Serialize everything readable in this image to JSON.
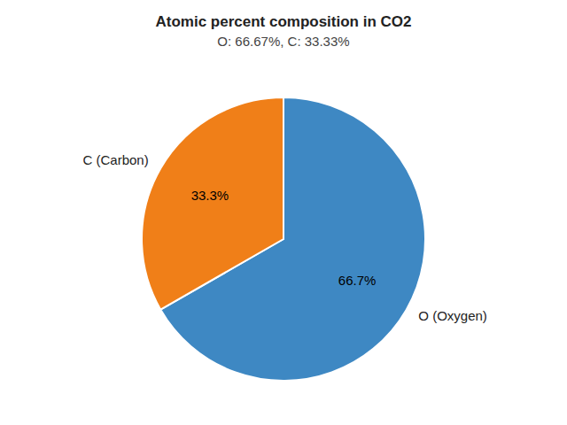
{
  "chart_data": {
    "type": "pie",
    "title": "Atomic percent composition in CO2",
    "subtitle": "O: 66.67%, C: 33.33%",
    "categories": [
      "O (Oxygen)",
      "C (Carbon)"
    ],
    "values": [
      66.7,
      33.3
    ],
    "value_labels": [
      "66.7%",
      "33.3%"
    ],
    "colors": [
      "#3e88c3",
      "#f07f18"
    ],
    "data_labels": true
  }
}
